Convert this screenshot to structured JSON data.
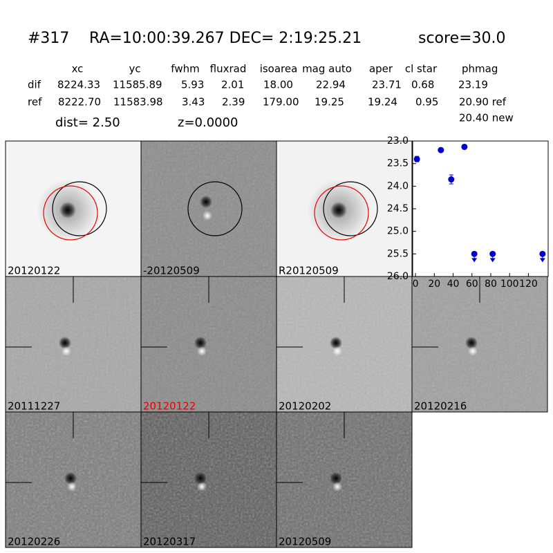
{
  "header": {
    "id": "#317",
    "coords": "RA=10:00:39.267 DEC= 2:19:25.21",
    "score": "score=30.0"
  },
  "table": {
    "columns": [
      "xc",
      "yc",
      "fwhm",
      "fluxrad",
      "isoarea",
      "mag auto",
      "aper",
      "cl star",
      "phmag"
    ],
    "rows": [
      [
        "dif",
        "8224.33",
        "11585.89",
        "5.93",
        "2.01",
        "18.00",
        "22.94",
        "23.71",
        "0.68",
        "23.19"
      ],
      [
        "ref",
        "8222.70",
        "11583.98",
        "3.43",
        "2.39",
        "179.00",
        "19.25",
        "19.24",
        "0.95",
        "20.90 ref"
      ]
    ],
    "extra": "20.40 new"
  },
  "dist": "dist=  2.50",
  "z": "z=0.0000",
  "stamps": [
    "20120122",
    "-20120509",
    "R20120509",
    "20111227",
    "20120122",
    "20120202",
    "20120216",
    "20120226",
    "20120317",
    "20120509"
  ],
  "chart_data": {
    "type": "scatter",
    "x": [
      1.5,
      27,
      38,
      52,
      62.5,
      82,
      135
    ],
    "values": [
      23.4,
      23.2,
      23.85,
      23.13,
      25.5,
      25.5,
      25.5
    ],
    "errors": [
      0.06,
      0.04,
      0.1,
      0.05,
      null,
      null,
      null
    ],
    "upper_limit": [
      false,
      false,
      false,
      false,
      true,
      true,
      true
    ],
    "color": "#0000cc",
    "xlim": [
      -3,
      141
    ],
    "xticks": [
      0,
      20,
      40,
      60,
      80,
      100,
      120
    ],
    "ylim": [
      26,
      23
    ],
    "yticks": [
      {
        "value": 23,
        "label": "23.0"
      },
      {
        "value": 23.5,
        "label": "23.5"
      },
      {
        "value": 24,
        "label": "24.0"
      },
      {
        "value": 24.5,
        "label": "24.5"
      },
      {
        "value": 25,
        "label": "25.0"
      },
      {
        "value": 25.5,
        "label": "25.5"
      },
      {
        "value": 26,
        "label": "26.0"
      }
    ]
  }
}
